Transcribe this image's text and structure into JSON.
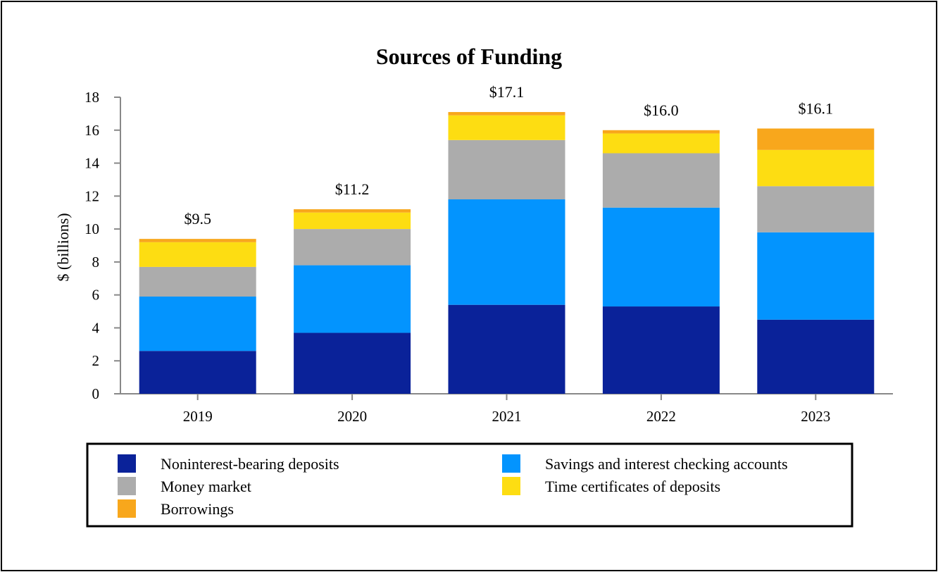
{
  "chart_data": {
    "type": "bar",
    "stacked": true,
    "title": "Sources of Funding",
    "xlabel": "",
    "ylabel": "$ (billions)",
    "ylim": [
      0,
      18
    ],
    "yticks": [
      0,
      2,
      4,
      6,
      8,
      10,
      12,
      14,
      16,
      18
    ],
    "categories": [
      "2019",
      "2020",
      "2021",
      "2022",
      "2023"
    ],
    "totals": [
      "$9.5",
      "$11.2",
      "$17.1",
      "$16.0",
      "$16.1"
    ],
    "series": [
      {
        "name": "Noninterest-bearing deposits",
        "color": "#0a2299",
        "values": [
          2.6,
          3.7,
          5.4,
          5.3,
          4.5
        ]
      },
      {
        "name": "Savings and interest checking accounts",
        "color": "#0394fe",
        "values": [
          3.3,
          4.1,
          6.4,
          6.0,
          5.3
        ]
      },
      {
        "name": "Money market",
        "color": "#acacac",
        "values": [
          1.8,
          2.2,
          3.6,
          3.3,
          2.8
        ]
      },
      {
        "name": "Time certificates of deposits",
        "color": "#fddd12",
        "values": [
          1.5,
          1.0,
          1.5,
          1.2,
          2.2
        ]
      },
      {
        "name": "Borrowings",
        "color": "#f8a71c",
        "values": [
          0.2,
          0.2,
          0.2,
          0.2,
          1.3
        ]
      }
    ],
    "legend_position": "bottom"
  }
}
